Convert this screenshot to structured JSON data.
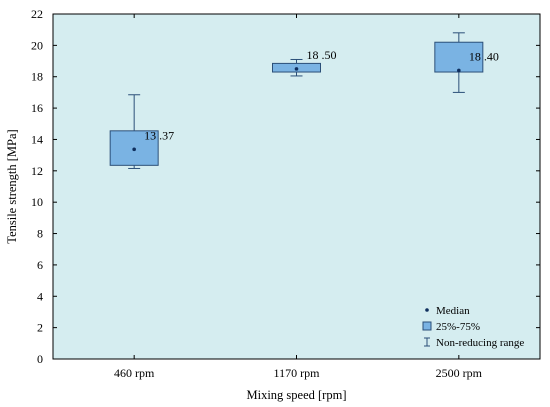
{
  "chart_data": {
    "type": "box",
    "title": "",
    "xlabel": "Mixing speed [rpm]",
    "ylabel": "Tensile strength [MPa]",
    "ylim": [
      0,
      22
    ],
    "yticks": [
      0,
      2,
      4,
      6,
      8,
      10,
      12,
      14,
      16,
      18,
      20,
      22
    ],
    "grid": false,
    "categories": [
      "460 rpm",
      "1170 rpm",
      "2500 rpm"
    ],
    "boxes": [
      {
        "category": "460 rpm",
        "median": 13.37,
        "q1": 12.35,
        "q3": 14.55,
        "min": 12.15,
        "max": 16.85,
        "median_label": "13 .37"
      },
      {
        "category": "1170 rpm",
        "median": 18.5,
        "q1": 18.3,
        "q3": 18.85,
        "min": 18.05,
        "max": 19.1,
        "median_label": "18 .50"
      },
      {
        "category": "2500 rpm",
        "median": 18.4,
        "q1": 18.3,
        "q3": 20.2,
        "min": 17.0,
        "max": 20.8,
        "median_label": "18 .40"
      }
    ],
    "legend": {
      "position": "bottom-right",
      "items": [
        {
          "symbol": "point",
          "label": "Median"
        },
        {
          "symbol": "box",
          "label": "25%-75%"
        },
        {
          "symbol": "whisker",
          "label": "Non-reducing range"
        }
      ]
    },
    "colors": {
      "plot_background": "#d5edf0",
      "box_fill": "#7ab3e3",
      "box_stroke": "#2b4f78",
      "median_point": "#0f2f5e",
      "whisker": "#2b4f78"
    }
  }
}
